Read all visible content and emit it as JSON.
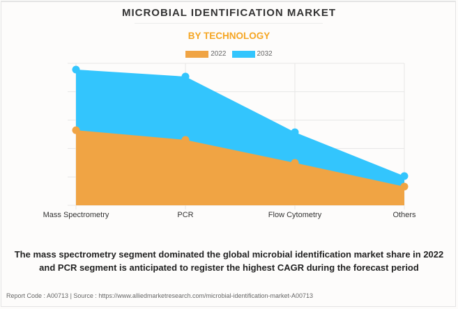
{
  "header": {
    "title": "MICROBIAL IDENTIFICATION MARKET",
    "subtitle": "BY TECHNOLOGY"
  },
  "legend": [
    {
      "label": "2022",
      "color": "#f0a444"
    },
    {
      "label": "2032",
      "color": "#33c5fd"
    }
  ],
  "chart_data": {
    "type": "area",
    "title": "MICROBIAL IDENTIFICATION MARKET",
    "subtitle": "BY TECHNOLOGY",
    "xlabel": "",
    "ylabel": "",
    "categories": [
      "Mass Spectrometry",
      "PCR",
      "Flow Cytometry",
      "Others"
    ],
    "series": [
      {
        "name": "2032",
        "color": "#33c5fd",
        "values": [
          95.6,
          90.7,
          51.5,
          20.6
        ]
      },
      {
        "name": "2022",
        "color": "#f0a444",
        "values": [
          52.9,
          46.1,
          29.9,
          13.2
        ]
      }
    ],
    "ylim": [
      0,
      100
    ],
    "y_gridlines": [
      0,
      20,
      40,
      60,
      80,
      100
    ],
    "y_tick_labels_visible": false,
    "grid": true,
    "legend_position": "top-center",
    "note": "values in relative units (no y-axis scale shown)"
  },
  "caption": "The mass spectrometry segment dominated the global microbial identification market share in 2022 and PCR segment is anticipated to register the highest CAGR during the forecast period",
  "footer": "Report Code : A00713  |  Source : https://www.alliedmarketresearch.com/microbial-identification-market-A00713"
}
